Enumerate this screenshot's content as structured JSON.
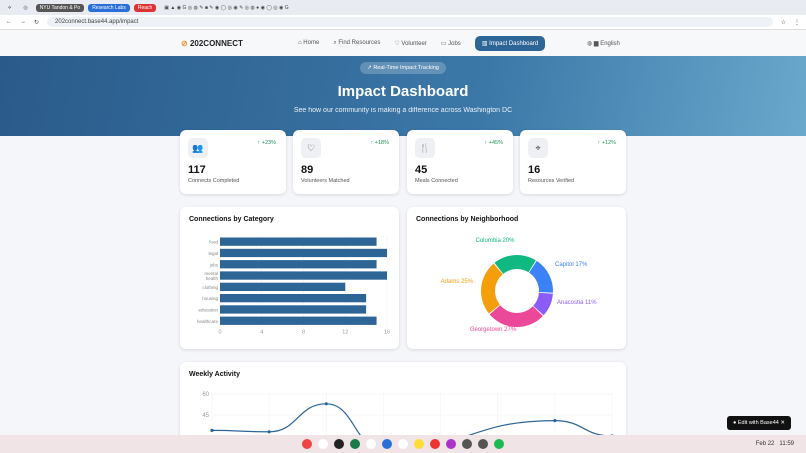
{
  "browser": {
    "tabs": [
      "NYU Tandon & Po",
      "Research Labs",
      "Reach"
    ],
    "url": "202connect.base44.app/impact"
  },
  "nav": {
    "logo": "202CONNECT",
    "logo_a": "202",
    "logo_b": "CONNECT",
    "links": [
      "Home",
      "Find Resources",
      "Volunteer",
      "Jobs",
      "Impact Dashboard"
    ],
    "language": "English"
  },
  "hero": {
    "badge": "Real-Time Impact Tracking",
    "title": "Impact Dashboard",
    "subtitle": "See how our community is making a difference across Washington DC"
  },
  "stats": [
    {
      "value": "117",
      "label": "Connects Completed",
      "change": "+23%",
      "icon": "users-icon"
    },
    {
      "value": "89",
      "label": "Volunteers Matched",
      "change": "+18%",
      "icon": "heart-icon"
    },
    {
      "value": "45",
      "label": "Meals Connected",
      "change": "+45%",
      "icon": "utensils-icon"
    },
    {
      "value": "16",
      "label": "Resources Verified",
      "change": "+12%",
      "icon": "map-pin-icon"
    }
  ],
  "chart_data": [
    {
      "type": "bar",
      "title": "Connections by Category",
      "orientation": "horizontal",
      "categories": [
        "food",
        "legal",
        "jobs",
        "mental health",
        "clothing",
        "housing",
        "education",
        "healthcare"
      ],
      "values": [
        15,
        16,
        15,
        16,
        12,
        14,
        14,
        15
      ],
      "xlim": [
        0,
        16
      ],
      "xticks": [
        0,
        4,
        8,
        12,
        16
      ],
      "color": "#2e6597",
      "grid": true
    },
    {
      "type": "pie",
      "title": "Connections by Neighborhood",
      "donut": true,
      "labels": [
        "Columbia",
        "Capitol",
        "Anacostia",
        "Georgetown",
        "Adams"
      ],
      "values": [
        20,
        17,
        11,
        27,
        25
      ],
      "colors": [
        "#10b981",
        "#3b82f6",
        "#8b5cf6",
        "#ec4899",
        "#f59e0b"
      ]
    },
    {
      "type": "line",
      "title": "Weekly Activity",
      "y_ticks_visible": [
        60,
        45
      ],
      "values": [
        34,
        33,
        53,
        20,
        null,
        null,
        41,
        30
      ],
      "color": "#2e6597",
      "smooth": true
    }
  ],
  "taskbar": {
    "date": "Feb 22",
    "time": "11:59"
  },
  "edit_badge": "Edit with Base44"
}
